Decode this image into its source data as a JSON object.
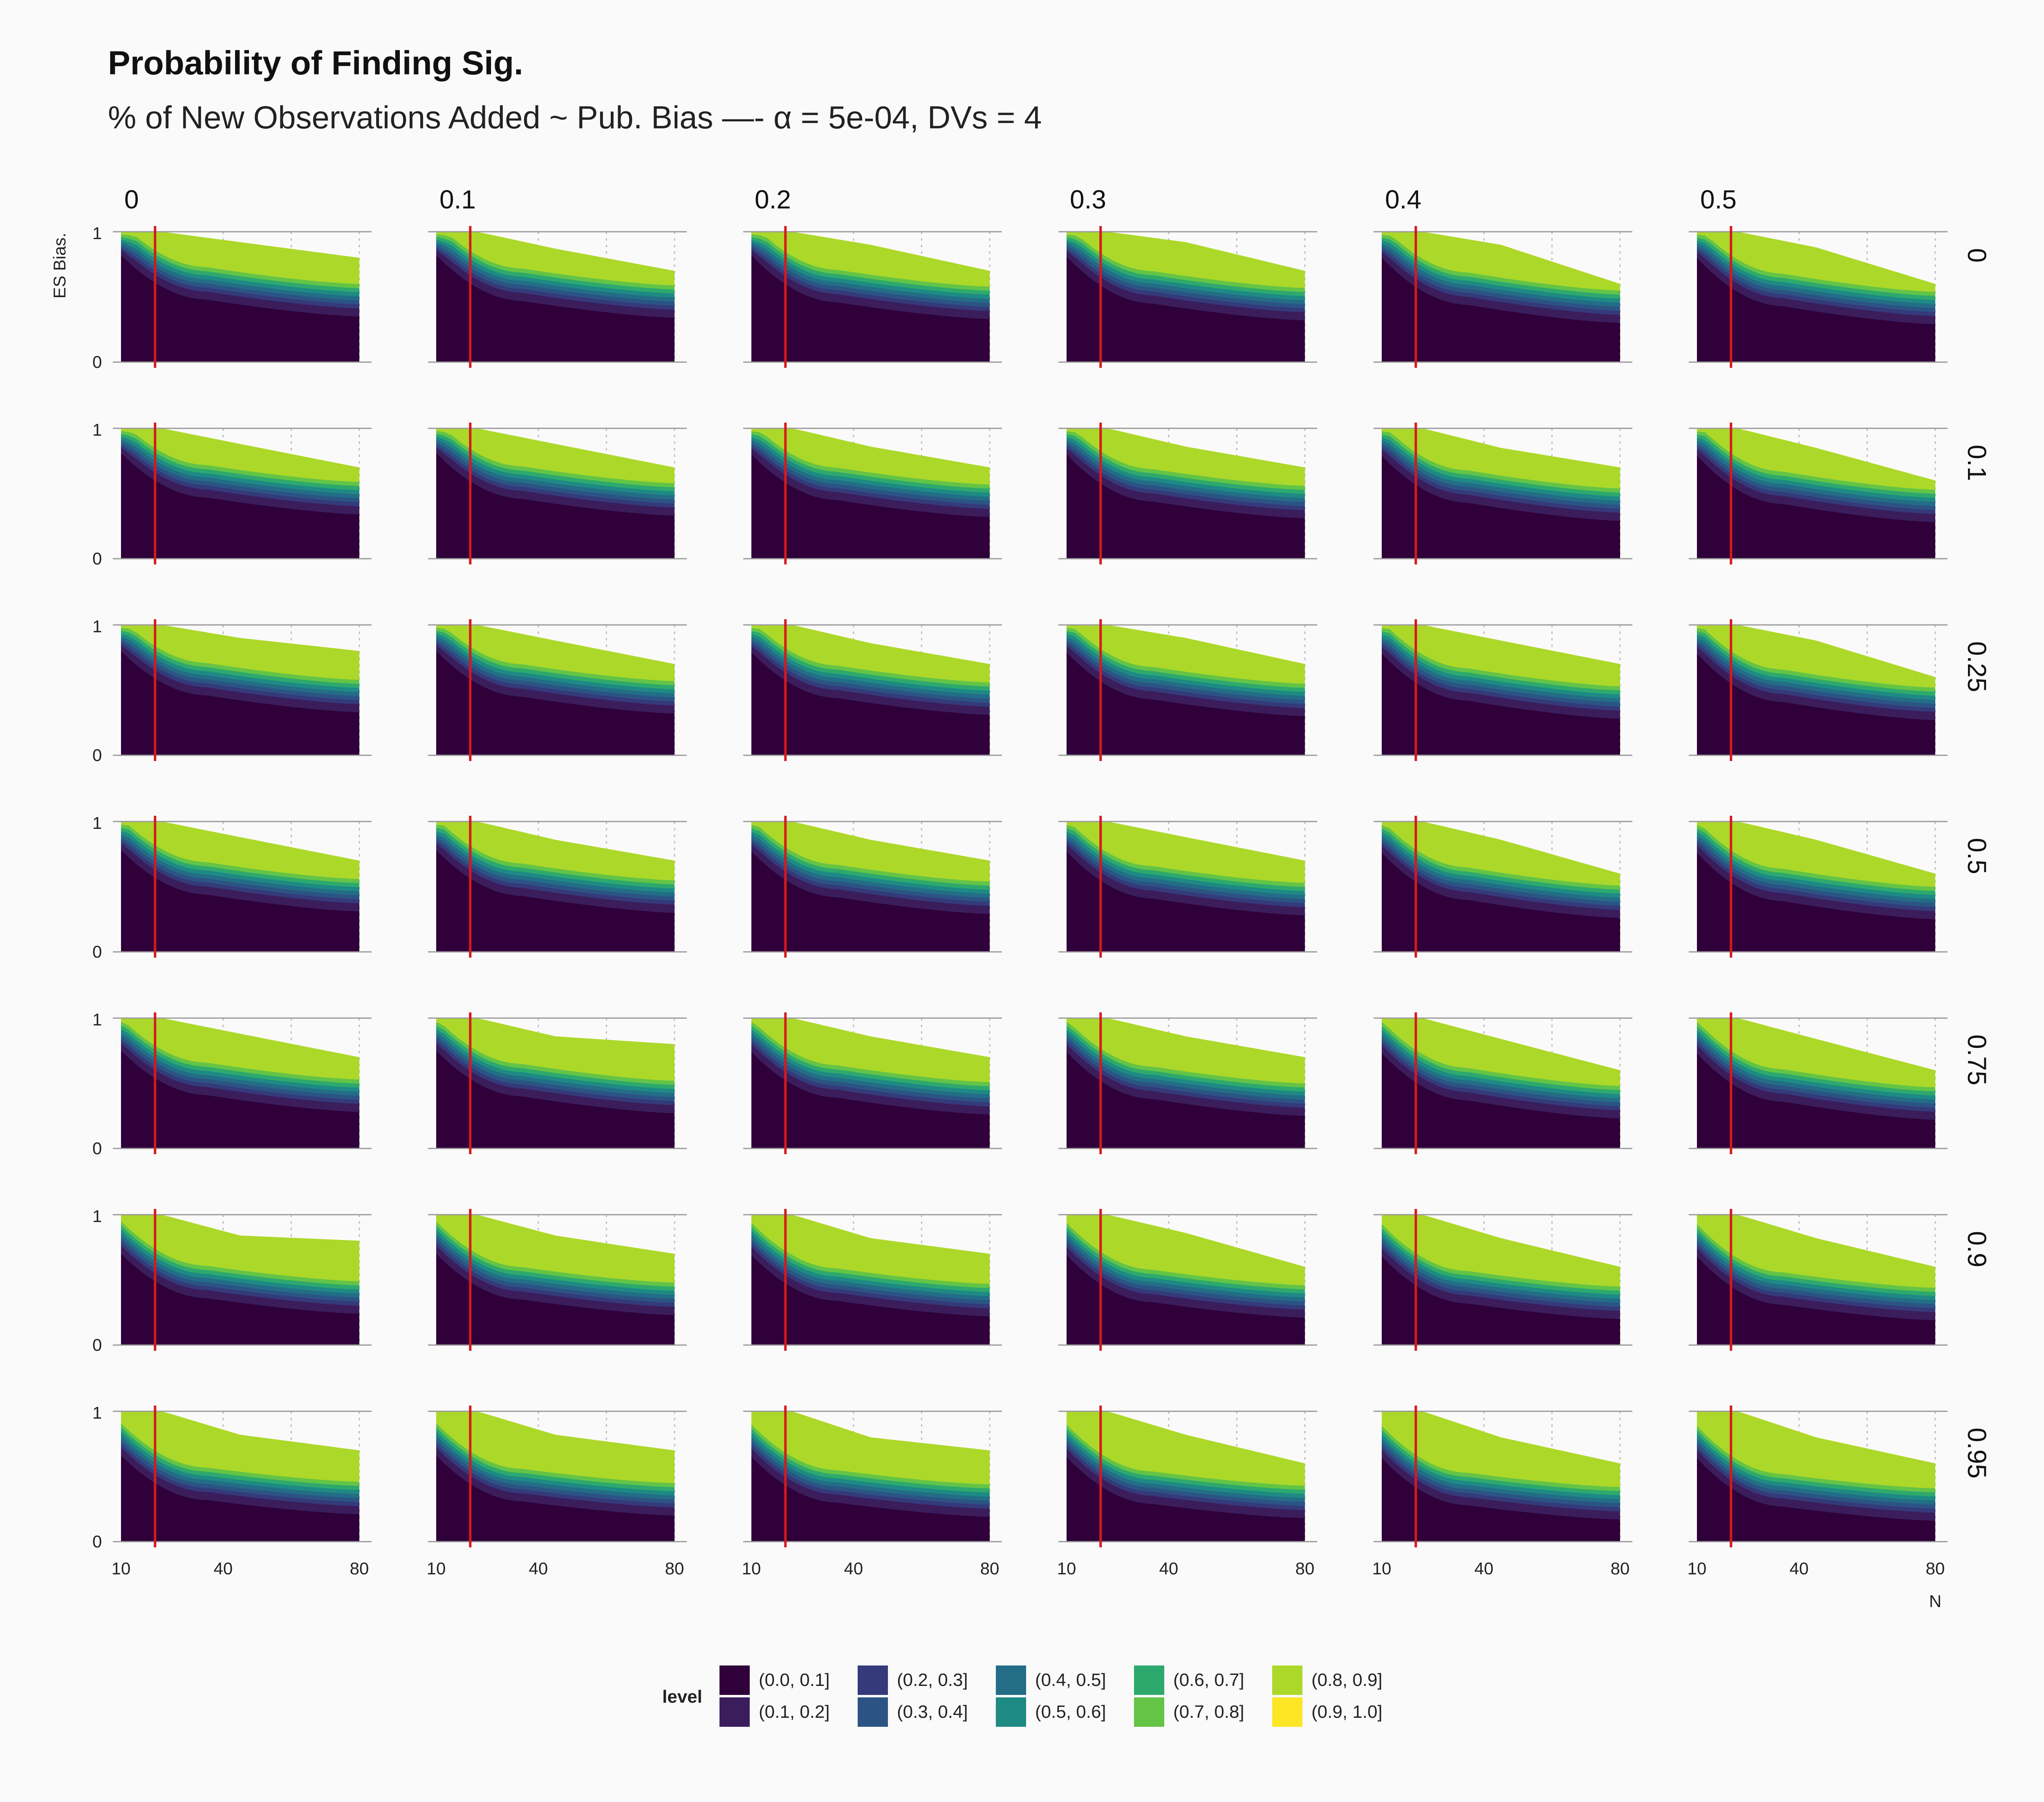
{
  "title": "Probability of Finding Sig.",
  "subtitle": "% of New Observations Added ~ Pub. Bias —- α = 5e-04, DVs = 4",
  "chart_data": {
    "type": "heatmap",
    "facet_columns": [
      "0",
      "0.1",
      "0.2",
      "0.3",
      "0.4",
      "0.5"
    ],
    "facet_rows": [
      "0",
      "0.1",
      "0.25",
      "0.5",
      "0.75",
      "0.9",
      "0.95"
    ],
    "xlabel": "N",
    "ylabel": "ES Bias.",
    "x_ticks": [
      "10",
      "40",
      "80"
    ],
    "y_ticks": [
      "0",
      "1"
    ],
    "xlim": [
      10,
      80
    ],
    "ylim": [
      0,
      1
    ],
    "reference_line_x": 20,
    "reference_line_color": "#d7191c",
    "grid": true,
    "legend_position": "bottom",
    "legend_title": "level",
    "levels": [
      "(0.0, 0.1]",
      "(0.1, 0.2]",
      "(0.2, 0.3]",
      "(0.3, 0.4]",
      "(0.4, 0.5]",
      "(0.5, 0.6]",
      "(0.6, 0.7]",
      "(0.7, 0.8]",
      "(0.8, 0.9]",
      "(0.9, 1.0]"
    ],
    "level_colors": [
      "#2f0039",
      "#3b1d5c",
      "#343a7a",
      "#2b5484",
      "#236d87",
      "#1e8a84",
      "#2ea96e",
      "#63c446",
      "#acd82a",
      "#fce625"
    ],
    "panels": [
      {
        "row": "0",
        "col": "0",
        "lower": [
          0.82,
          0.48,
          0.35
        ],
        "upper": [
          1.0,
          0.92,
          0.8
        ]
      },
      {
        "row": "0",
        "col": "0.1",
        "lower": [
          0.82,
          0.47,
          0.34
        ],
        "upper": [
          1.0,
          0.87,
          0.7
        ]
      },
      {
        "row": "0",
        "col": "0.2",
        "lower": [
          0.82,
          0.46,
          0.33
        ],
        "upper": [
          1.0,
          0.9,
          0.7
        ]
      },
      {
        "row": "0",
        "col": "0.3",
        "lower": [
          0.81,
          0.45,
          0.32
        ],
        "upper": [
          1.0,
          0.92,
          0.7
        ]
      },
      {
        "row": "0",
        "col": "0.4",
        "lower": [
          0.8,
          0.44,
          0.3
        ],
        "upper": [
          1.0,
          0.9,
          0.6
        ]
      },
      {
        "row": "0",
        "col": "0.5",
        "lower": [
          0.8,
          0.43,
          0.29
        ],
        "upper": [
          1.0,
          0.88,
          0.6
        ]
      },
      {
        "row": "0.1",
        "col": "0",
        "lower": [
          0.81,
          0.47,
          0.34
        ],
        "upper": [
          1.0,
          0.88,
          0.7
        ]
      },
      {
        "row": "0.1",
        "col": "0.1",
        "lower": [
          0.81,
          0.46,
          0.33
        ],
        "upper": [
          1.0,
          0.88,
          0.7
        ]
      },
      {
        "row": "0.1",
        "col": "0.2",
        "lower": [
          0.8,
          0.45,
          0.32
        ],
        "upper": [
          1.0,
          0.86,
          0.7
        ]
      },
      {
        "row": "0.1",
        "col": "0.3",
        "lower": [
          0.8,
          0.44,
          0.31
        ],
        "upper": [
          1.0,
          0.86,
          0.7
        ]
      },
      {
        "row": "0.1",
        "col": "0.4",
        "lower": [
          0.79,
          0.43,
          0.29
        ],
        "upper": [
          1.0,
          0.85,
          0.7
        ]
      },
      {
        "row": "0.1",
        "col": "0.5",
        "lower": [
          0.79,
          0.42,
          0.28
        ],
        "upper": [
          1.0,
          0.85,
          0.6
        ]
      },
      {
        "row": "0.25",
        "col": "0",
        "lower": [
          0.8,
          0.46,
          0.33
        ],
        "upper": [
          1.0,
          0.9,
          0.8
        ]
      },
      {
        "row": "0.25",
        "col": "0.1",
        "lower": [
          0.8,
          0.45,
          0.32
        ],
        "upper": [
          1.0,
          0.88,
          0.7
        ]
      },
      {
        "row": "0.25",
        "col": "0.2",
        "lower": [
          0.79,
          0.44,
          0.31
        ],
        "upper": [
          1.0,
          0.86,
          0.7
        ]
      },
      {
        "row": "0.25",
        "col": "0.3",
        "lower": [
          0.79,
          0.43,
          0.3
        ],
        "upper": [
          1.0,
          0.9,
          0.7
        ]
      },
      {
        "row": "0.25",
        "col": "0.4",
        "lower": [
          0.78,
          0.42,
          0.28
        ],
        "upper": [
          1.0,
          0.88,
          0.7
        ]
      },
      {
        "row": "0.25",
        "col": "0.5",
        "lower": [
          0.78,
          0.41,
          0.27
        ],
        "upper": [
          1.0,
          0.88,
          0.6
        ]
      },
      {
        "row": "0.5",
        "col": "0",
        "lower": [
          0.78,
          0.44,
          0.31
        ],
        "upper": [
          1.0,
          0.88,
          0.7
        ]
      },
      {
        "row": "0.5",
        "col": "0.1",
        "lower": [
          0.78,
          0.43,
          0.3
        ],
        "upper": [
          1.0,
          0.86,
          0.7
        ]
      },
      {
        "row": "0.5",
        "col": "0.2",
        "lower": [
          0.77,
          0.42,
          0.29
        ],
        "upper": [
          1.0,
          0.86,
          0.7
        ]
      },
      {
        "row": "0.5",
        "col": "0.3",
        "lower": [
          0.77,
          0.41,
          0.28
        ],
        "upper": [
          1.0,
          0.88,
          0.7
        ]
      },
      {
        "row": "0.5",
        "col": "0.4",
        "lower": [
          0.76,
          0.4,
          0.26
        ],
        "upper": [
          1.0,
          0.86,
          0.6
        ]
      },
      {
        "row": "0.5",
        "col": "0.5",
        "lower": [
          0.76,
          0.39,
          0.25
        ],
        "upper": [
          1.0,
          0.86,
          0.6
        ]
      },
      {
        "row": "0.75",
        "col": "0",
        "lower": [
          0.75,
          0.41,
          0.28
        ],
        "upper": [
          1.0,
          0.88,
          0.7
        ]
      },
      {
        "row": "0.75",
        "col": "0.1",
        "lower": [
          0.75,
          0.4,
          0.27
        ],
        "upper": [
          1.0,
          0.86,
          0.8
        ]
      },
      {
        "row": "0.75",
        "col": "0.2",
        "lower": [
          0.74,
          0.39,
          0.26
        ],
        "upper": [
          1.0,
          0.86,
          0.7
        ]
      },
      {
        "row": "0.75",
        "col": "0.3",
        "lower": [
          0.74,
          0.38,
          0.25
        ],
        "upper": [
          1.0,
          0.86,
          0.7
        ]
      },
      {
        "row": "0.75",
        "col": "0.4",
        "lower": [
          0.73,
          0.37,
          0.23
        ],
        "upper": [
          1.0,
          0.84,
          0.6
        ]
      },
      {
        "row": "0.75",
        "col": "0.5",
        "lower": [
          0.73,
          0.36,
          0.22
        ],
        "upper": [
          1.0,
          0.84,
          0.6
        ]
      },
      {
        "row": "0.9",
        "col": "0",
        "lower": [
          0.7,
          0.36,
          0.24
        ],
        "upper": [
          1.0,
          0.84,
          0.8
        ]
      },
      {
        "row": "0.9",
        "col": "0.1",
        "lower": [
          0.7,
          0.35,
          0.23
        ],
        "upper": [
          1.0,
          0.84,
          0.7
        ]
      },
      {
        "row": "0.9",
        "col": "0.2",
        "lower": [
          0.69,
          0.34,
          0.22
        ],
        "upper": [
          1.0,
          0.82,
          0.7
        ]
      },
      {
        "row": "0.9",
        "col": "0.3",
        "lower": [
          0.69,
          0.33,
          0.21
        ],
        "upper": [
          1.0,
          0.86,
          0.6
        ]
      },
      {
        "row": "0.9",
        "col": "0.4",
        "lower": [
          0.68,
          0.32,
          0.2
        ],
        "upper": [
          1.0,
          0.82,
          0.6
        ]
      },
      {
        "row": "0.9",
        "col": "0.5",
        "lower": [
          0.68,
          0.31,
          0.19
        ],
        "upper": [
          1.0,
          0.82,
          0.6
        ]
      },
      {
        "row": "0.95",
        "col": "0",
        "lower": [
          0.66,
          0.32,
          0.21
        ],
        "upper": [
          1.0,
          0.82,
          0.7
        ]
      },
      {
        "row": "0.95",
        "col": "0.1",
        "lower": [
          0.66,
          0.31,
          0.2
        ],
        "upper": [
          1.0,
          0.82,
          0.7
        ]
      },
      {
        "row": "0.95",
        "col": "0.2",
        "lower": [
          0.65,
          0.3,
          0.19
        ],
        "upper": [
          1.0,
          0.8,
          0.7
        ]
      },
      {
        "row": "0.95",
        "col": "0.3",
        "lower": [
          0.65,
          0.29,
          0.18
        ],
        "upper": [
          1.0,
          0.82,
          0.6
        ]
      },
      {
        "row": "0.95",
        "col": "0.4",
        "lower": [
          0.64,
          0.28,
          0.17
        ],
        "upper": [
          1.0,
          0.8,
          0.6
        ]
      },
      {
        "row": "0.95",
        "col": "0.5",
        "lower": [
          0.64,
          0.27,
          0.16
        ],
        "upper": [
          1.0,
          0.8,
          0.6
        ]
      }
    ]
  }
}
